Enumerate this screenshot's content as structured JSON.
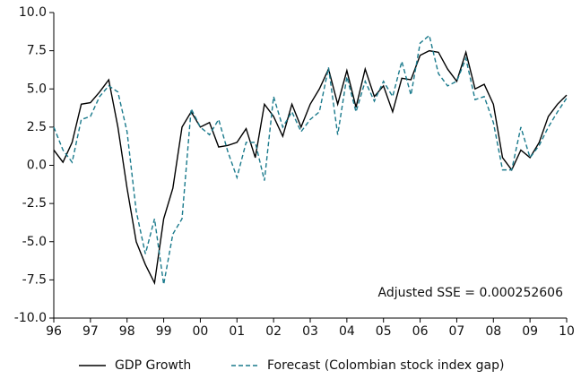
{
  "chart_data": {
    "type": "line",
    "annotation": "Adjusted SSE = 0.000252606",
    "x": [
      1996,
      1996.25,
      1996.5,
      1996.75,
      1997,
      1997.25,
      1997.5,
      1997.75,
      1998,
      1998.25,
      1998.5,
      1998.75,
      1999,
      1999.25,
      1999.5,
      1999.75,
      2000,
      2000.25,
      2000.5,
      2000.75,
      2001,
      2001.25,
      2001.5,
      2001.75,
      2002,
      2002.25,
      2002.5,
      2002.75,
      2003,
      2003.25,
      2003.5,
      2003.75,
      2004,
      2004.25,
      2004.5,
      2004.75,
      2005,
      2005.25,
      2005.5,
      2005.75,
      2006,
      2006.25,
      2006.5,
      2006.75,
      2007,
      2007.25,
      2007.5,
      2007.75,
      2008,
      2008.25,
      2008.5,
      2008.75,
      2009,
      2009.25,
      2009.5,
      2009.75,
      2010
    ],
    "series": [
      {
        "name": "GDP Growth",
        "color": "#000000",
        "dash": false,
        "values": [
          1.0,
          0.2,
          1.5,
          4.0,
          4.1,
          4.8,
          5.6,
          2.5,
          -1.5,
          -5.0,
          -6.5,
          -7.7,
          -3.5,
          -1.5,
          2.5,
          3.5,
          2.5,
          2.8,
          1.2,
          1.3,
          1.5,
          2.4,
          0.5,
          4.0,
          3.2,
          1.9,
          4.0,
          2.5,
          4.0,
          5.0,
          6.3,
          4.0,
          6.2,
          3.8,
          6.3,
          4.5,
          5.2,
          3.5,
          5.7,
          5.6,
          7.2,
          7.5,
          7.4,
          6.3,
          5.5,
          7.4,
          5.0,
          5.3,
          4.0,
          0.5,
          -0.3,
          1.0,
          0.5,
          1.5,
          3.2,
          4.0,
          4.6
        ]
      },
      {
        "name": "Forecast (Colombian stock index gap)",
        "color": "#1a7a8c",
        "dash": true,
        "values": [
          2.5,
          1.0,
          0.2,
          3.0,
          3.2,
          4.5,
          5.2,
          4.8,
          2.2,
          -3.0,
          -5.8,
          -3.5,
          -7.8,
          -4.5,
          -3.5,
          3.7,
          2.5,
          2.0,
          3.0,
          0.9,
          -0.8,
          1.5,
          1.5,
          -1.0,
          4.5,
          2.5,
          3.5,
          2.2,
          3.0,
          3.5,
          6.4,
          2.0,
          5.8,
          3.5,
          5.5,
          4.2,
          5.5,
          4.5,
          6.8,
          4.6,
          8.0,
          8.5,
          6.0,
          5.2,
          5.5,
          7.0,
          4.3,
          4.5,
          2.8,
          -0.3,
          -0.3,
          2.5,
          0.5,
          1.3,
          2.5,
          3.5,
          4.4
        ]
      }
    ],
    "xlim": [
      1996,
      2010
    ],
    "xticks": [
      {
        "value": 1996,
        "label": "96"
      },
      {
        "value": 1997,
        "label": "97"
      },
      {
        "value": 1998,
        "label": "98"
      },
      {
        "value": 1999,
        "label": "99"
      },
      {
        "value": 2000,
        "label": "00"
      },
      {
        "value": 2001,
        "label": "01"
      },
      {
        "value": 2002,
        "label": "02"
      },
      {
        "value": 2003,
        "label": "03"
      },
      {
        "value": 2004,
        "label": "04"
      },
      {
        "value": 2005,
        "label": "05"
      },
      {
        "value": 2006,
        "label": "06"
      },
      {
        "value": 2007,
        "label": "07"
      },
      {
        "value": 2008,
        "label": "08"
      },
      {
        "value": 2009,
        "label": "09"
      },
      {
        "value": 2010,
        "label": "10"
      }
    ],
    "ylim": [
      -10,
      10
    ],
    "yticks": [
      {
        "value": 10,
        "label": "10.0"
      },
      {
        "value": 7.5,
        "label": "7.5"
      },
      {
        "value": 5,
        "label": "5.0"
      },
      {
        "value": 2.5,
        "label": "2.5"
      },
      {
        "value": 0,
        "label": "0.0"
      },
      {
        "value": -2.5,
        "label": "-2.5"
      },
      {
        "value": -5,
        "label": "-5.0"
      },
      {
        "value": -7.5,
        "label": "-7.5"
      },
      {
        "value": -10,
        "label": "-10.0"
      }
    ],
    "grid": false,
    "legend": "bottom"
  }
}
